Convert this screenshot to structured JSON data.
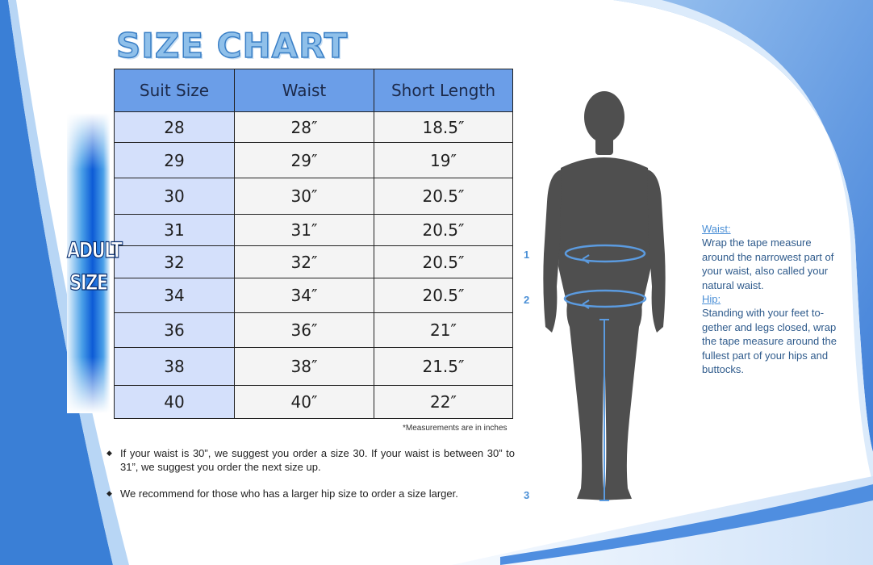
{
  "title": "SIZE CHART",
  "side_label": {
    "line1": "ADULT",
    "line2": "SIZE"
  },
  "table": {
    "headers": [
      "Suit Size",
      "Waist",
      "Short Length"
    ],
    "rows": [
      [
        "28",
        "28″",
        "18.5″"
      ],
      [
        "29",
        "29″",
        "19″"
      ],
      [
        "30",
        "30″",
        "20.5″"
      ],
      [
        "31",
        "31″",
        "20.5″"
      ],
      [
        "32",
        "32″",
        "20.5″"
      ],
      [
        "34",
        "34″",
        "20.5″"
      ],
      [
        "36",
        "36″",
        "21″"
      ],
      [
        "38",
        "38″",
        "21.5″"
      ],
      [
        "40",
        "40″",
        "22″"
      ]
    ]
  },
  "note": "*Measurements are in inches",
  "bullets": [
    "If your waist is 30”, we suggest you order a size 30.  If your waist is between 30” to 31”, we suggest you order the next size up.",
    "We recommend for those who has a larger hip size to order a size larger."
  ],
  "figure_markers": [
    "1",
    "2",
    "3"
  ],
  "instructions": {
    "waist_title": "Waist:",
    "waist_text": "Wrap the tape measure around the narrowest part of your waist, also called your natural waist.",
    "hip_title": "Hip:",
    "hip_text": "Standing with your feet to-gether and legs closed, wrap the tape measure around the fullest part of your hips and buttocks."
  },
  "colors": {
    "header_fill": "#6b9ee8",
    "first_column_fill": "#d4e0fb",
    "accent_blue": "#4a8fd6",
    "bar_blue": "#0d5bd6"
  }
}
